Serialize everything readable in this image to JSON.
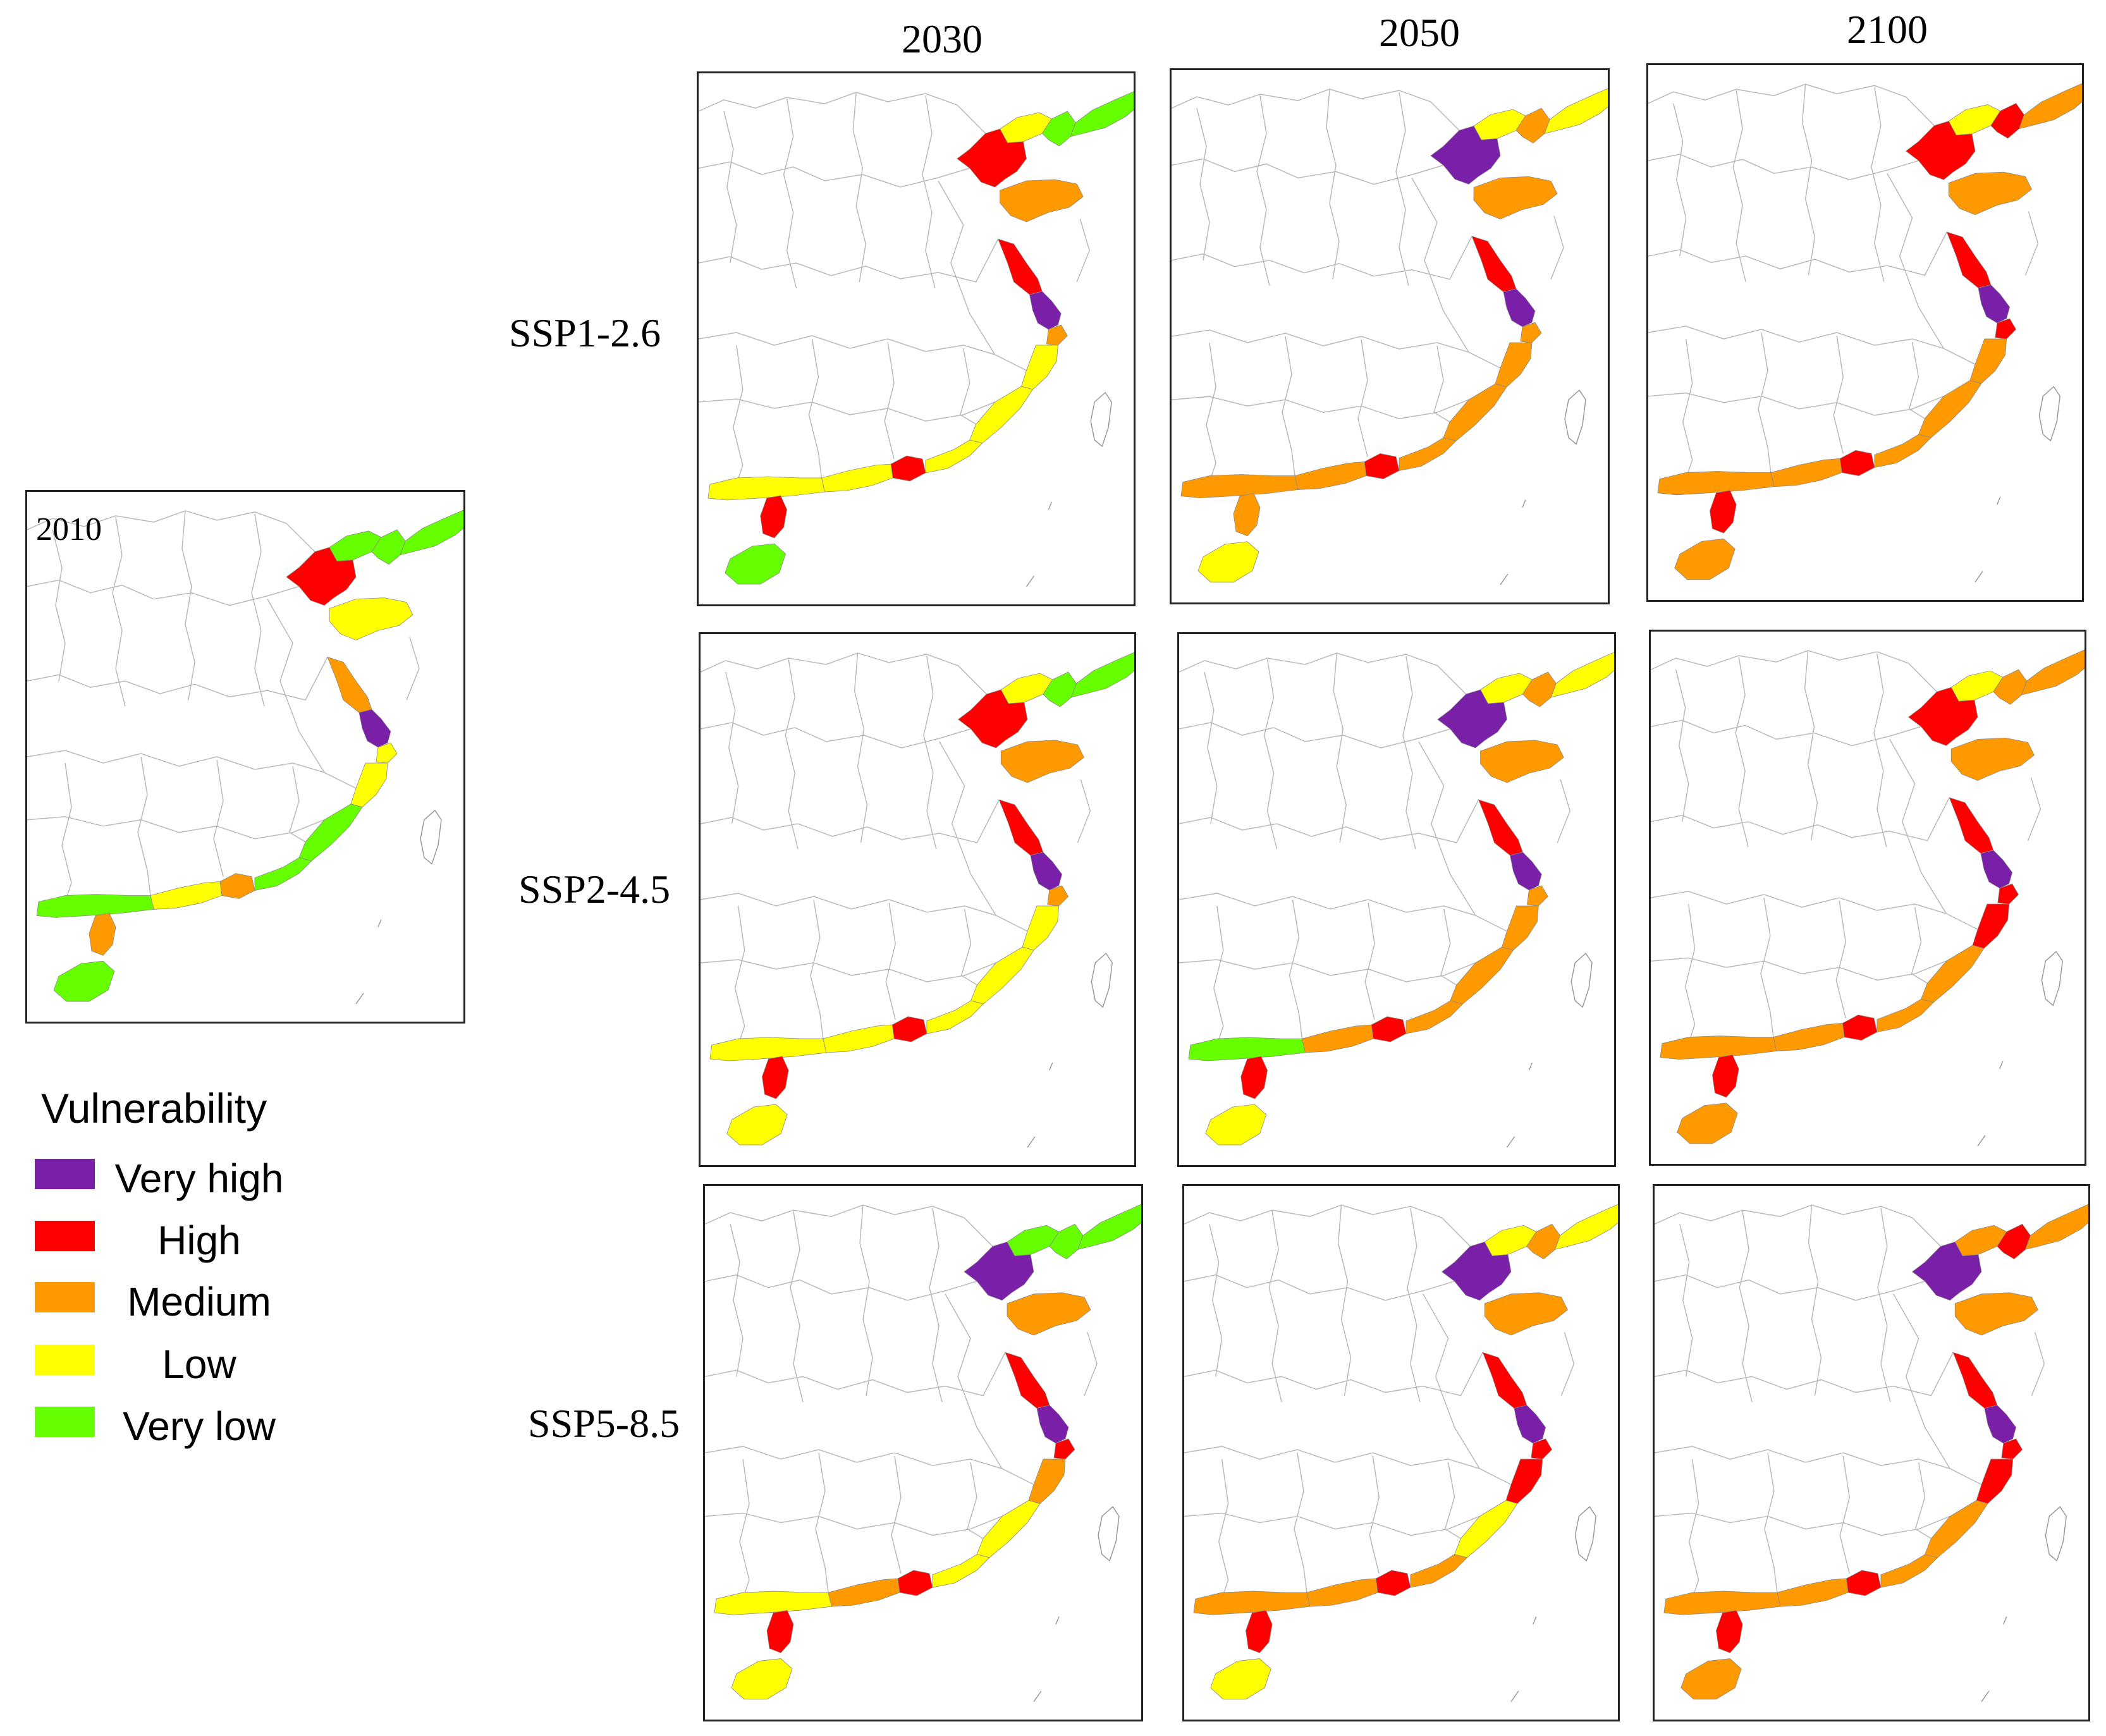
{
  "years": [
    "2030",
    "2050",
    "2100"
  ],
  "scenarios": [
    "SSP1-2.6",
    "SSP2-4.5",
    "SSP5-8.5"
  ],
  "baseline": {
    "label": "2010"
  },
  "legend": {
    "title": "Vulnerability",
    "items": [
      {
        "key": "vh",
        "label": "Very high",
        "color": "#7a1fa8"
      },
      {
        "key": "h",
        "label": "High",
        "color": "#ff0000"
      },
      {
        "key": "m",
        "label": "Medium",
        "color": "#ff9900"
      },
      {
        "key": "l",
        "label": "Low",
        "color": "#ffff00"
      },
      {
        "key": "vl",
        "label": "Very low",
        "color": "#66ff00"
      }
    ]
  },
  "coast_segments": [
    "liaodong_west",
    "liaodong_east",
    "dandong",
    "bohai_west",
    "shandong",
    "jiangsu_north",
    "yangtze_delta",
    "shanghai",
    "zhejiang",
    "fujian",
    "guangdong_east",
    "pearl_delta",
    "guangdong_west",
    "guangxi",
    "leizhou",
    "hainan"
  ],
  "vulnerability_maps": {
    "2010": [
      "vl",
      "vl",
      "vl",
      "h",
      "l",
      "m",
      "vh",
      "l",
      "l",
      "vl",
      "vl",
      "m",
      "l",
      "vl",
      "m",
      "vl"
    ],
    "SSP1-2.6/2030": [
      "l",
      "vl",
      "vl",
      "h",
      "m",
      "h",
      "vh",
      "m",
      "l",
      "l",
      "l",
      "h",
      "l",
      "l",
      "h",
      "vl"
    ],
    "SSP1-2.6/2050": [
      "l",
      "m",
      "l",
      "vh",
      "m",
      "h",
      "vh",
      "m",
      "m",
      "m",
      "m",
      "h",
      "m",
      "m",
      "m",
      "l"
    ],
    "SSP1-2.6/2100": [
      "l",
      "h",
      "m",
      "h",
      "m",
      "h",
      "vh",
      "h",
      "m",
      "m",
      "m",
      "h",
      "m",
      "m",
      "h",
      "m"
    ],
    "SSP2-4.5/2030": [
      "l",
      "vl",
      "vl",
      "h",
      "m",
      "h",
      "vh",
      "m",
      "l",
      "l",
      "l",
      "h",
      "l",
      "l",
      "h",
      "l"
    ],
    "SSP2-4.5/2050": [
      "l",
      "m",
      "l",
      "vh",
      "m",
      "h",
      "vh",
      "m",
      "m",
      "m",
      "m",
      "h",
      "m",
      "vl",
      "h",
      "l"
    ],
    "SSP2-4.5/2100": [
      "l",
      "m",
      "m",
      "h",
      "m",
      "h",
      "vh",
      "h",
      "h",
      "m",
      "m",
      "h",
      "m",
      "m",
      "h",
      "m"
    ],
    "SSP5-8.5/2030": [
      "vl",
      "vl",
      "vl",
      "vh",
      "m",
      "h",
      "vh",
      "h",
      "m",
      "l",
      "l",
      "h",
      "m",
      "l",
      "h",
      "l"
    ],
    "SSP5-8.5/2050": [
      "l",
      "m",
      "l",
      "vh",
      "m",
      "h",
      "vh",
      "h",
      "h",
      "l",
      "m",
      "h",
      "m",
      "m",
      "h",
      "l"
    ],
    "SSP5-8.5/2100": [
      "m",
      "h",
      "m",
      "vh",
      "m",
      "h",
      "vh",
      "h",
      "h",
      "m",
      "m",
      "h",
      "m",
      "m",
      "h",
      "m"
    ]
  }
}
